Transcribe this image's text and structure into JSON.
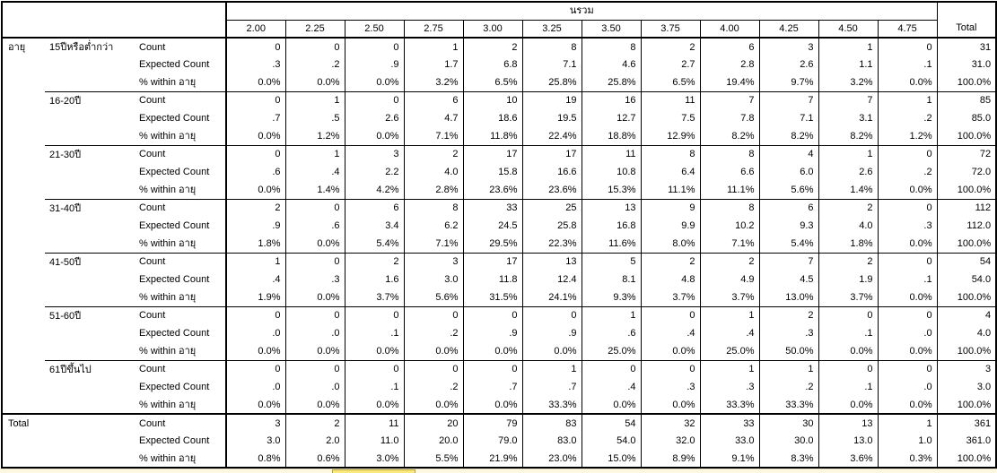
{
  "table": {
    "col_group_label": "นรวม",
    "columns": [
      "2.00",
      "2.25",
      "2.50",
      "2.75",
      "3.00",
      "3.25",
      "3.50",
      "3.75",
      "4.00",
      "4.25",
      "4.50",
      "4.75"
    ],
    "total_label": "Total",
    "sections": [
      {
        "dim_label": "อายุ",
        "groups": [
          {
            "label": "15ปีหรือต่ำกว่า",
            "stats": [
              {
                "label": "Count",
                "values": [
                  "0",
                  "0",
                  "0",
                  "1",
                  "2",
                  "8",
                  "8",
                  "2",
                  "6",
                  "3",
                  "1",
                  "0",
                  "31"
                ]
              },
              {
                "label": "Expected Count",
                "values": [
                  ".3",
                  ".2",
                  ".9",
                  "1.7",
                  "6.8",
                  "7.1",
                  "4.6",
                  "2.7",
                  "2.8",
                  "2.6",
                  "1.1",
                  ".1",
                  "31.0"
                ]
              },
              {
                "label": "% within อายุ",
                "values": [
                  "0.0%",
                  "0.0%",
                  "0.0%",
                  "3.2%",
                  "6.5%",
                  "25.8%",
                  "25.8%",
                  "6.5%",
                  "19.4%",
                  "9.7%",
                  "3.2%",
                  "0.0%",
                  "100.0%"
                ]
              }
            ]
          },
          {
            "label": "16-20ปี",
            "stats": [
              {
                "label": "Count",
                "values": [
                  "0",
                  "1",
                  "0",
                  "6",
                  "10",
                  "19",
                  "16",
                  "11",
                  "7",
                  "7",
                  "7",
                  "1",
                  "85"
                ]
              },
              {
                "label": "Expected Count",
                "values": [
                  ".7",
                  ".5",
                  "2.6",
                  "4.7",
                  "18.6",
                  "19.5",
                  "12.7",
                  "7.5",
                  "7.8",
                  "7.1",
                  "3.1",
                  ".2",
                  "85.0"
                ]
              },
              {
                "label": "% within อายุ",
                "values": [
                  "0.0%",
                  "1.2%",
                  "0.0%",
                  "7.1%",
                  "11.8%",
                  "22.4%",
                  "18.8%",
                  "12.9%",
                  "8.2%",
                  "8.2%",
                  "8.2%",
                  "1.2%",
                  "100.0%"
                ]
              }
            ]
          },
          {
            "label": "21-30ปี",
            "stats": [
              {
                "label": "Count",
                "values": [
                  "0",
                  "1",
                  "3",
                  "2",
                  "17",
                  "17",
                  "11",
                  "8",
                  "8",
                  "4",
                  "1",
                  "0",
                  "72"
                ]
              },
              {
                "label": "Expected Count",
                "values": [
                  ".6",
                  ".4",
                  "2.2",
                  "4.0",
                  "15.8",
                  "16.6",
                  "10.8",
                  "6.4",
                  "6.6",
                  "6.0",
                  "2.6",
                  ".2",
                  "72.0"
                ]
              },
              {
                "label": "% within อายุ",
                "values": [
                  "0.0%",
                  "1.4%",
                  "4.2%",
                  "2.8%",
                  "23.6%",
                  "23.6%",
                  "15.3%",
                  "11.1%",
                  "11.1%",
                  "5.6%",
                  "1.4%",
                  "0.0%",
                  "100.0%"
                ]
              }
            ]
          },
          {
            "label": "31-40ปี",
            "stats": [
              {
                "label": "Count",
                "values": [
                  "2",
                  "0",
                  "6",
                  "8",
                  "33",
                  "25",
                  "13",
                  "9",
                  "8",
                  "6",
                  "2",
                  "0",
                  "112"
                ]
              },
              {
                "label": "Expected Count",
                "values": [
                  ".9",
                  ".6",
                  "3.4",
                  "6.2",
                  "24.5",
                  "25.8",
                  "16.8",
                  "9.9",
                  "10.2",
                  "9.3",
                  "4.0",
                  ".3",
                  "112.0"
                ]
              },
              {
                "label": "% within อายุ",
                "values": [
                  "1.8%",
                  "0.0%",
                  "5.4%",
                  "7.1%",
                  "29.5%",
                  "22.3%",
                  "11.6%",
                  "8.0%",
                  "7.1%",
                  "5.4%",
                  "1.8%",
                  "0.0%",
                  "100.0%"
                ]
              }
            ]
          },
          {
            "label": "41-50ปี",
            "stats": [
              {
                "label": "Count",
                "values": [
                  "1",
                  "0",
                  "2",
                  "3",
                  "17",
                  "13",
                  "5",
                  "2",
                  "2",
                  "7",
                  "2",
                  "0",
                  "54"
                ]
              },
              {
                "label": "Expected Count",
                "values": [
                  ".4",
                  ".3",
                  "1.6",
                  "3.0",
                  "11.8",
                  "12.4",
                  "8.1",
                  "4.8",
                  "4.9",
                  "4.5",
                  "1.9",
                  ".1",
                  "54.0"
                ]
              },
              {
                "label": "% within อายุ",
                "values": [
                  "1.9%",
                  "0.0%",
                  "3.7%",
                  "5.6%",
                  "31.5%",
                  "24.1%",
                  "9.3%",
                  "3.7%",
                  "3.7%",
                  "13.0%",
                  "3.7%",
                  "0.0%",
                  "100.0%"
                ]
              }
            ]
          },
          {
            "label": "51-60ปี",
            "stats": [
              {
                "label": "Count",
                "values": [
                  "0",
                  "0",
                  "0",
                  "0",
                  "0",
                  "0",
                  "1",
                  "0",
                  "1",
                  "2",
                  "0",
                  "0",
                  "4"
                ]
              },
              {
                "label": "Expected Count",
                "values": [
                  ".0",
                  ".0",
                  ".1",
                  ".2",
                  ".9",
                  ".9",
                  ".6",
                  ".4",
                  ".4",
                  ".3",
                  ".1",
                  ".0",
                  "4.0"
                ]
              },
              {
                "label": "% within อายุ",
                "values": [
                  "0.0%",
                  "0.0%",
                  "0.0%",
                  "0.0%",
                  "0.0%",
                  "0.0%",
                  "25.0%",
                  "0.0%",
                  "25.0%",
                  "50.0%",
                  "0.0%",
                  "0.0%",
                  "100.0%"
                ]
              }
            ]
          },
          {
            "label": "61ปีขึ้นไป",
            "stats": [
              {
                "label": "Count",
                "values": [
                  "0",
                  "0",
                  "0",
                  "0",
                  "0",
                  "1",
                  "0",
                  "0",
                  "1",
                  "1",
                  "0",
                  "0",
                  "3"
                ]
              },
              {
                "label": "Expected Count",
                "values": [
                  ".0",
                  ".0",
                  ".1",
                  ".2",
                  ".7",
                  ".7",
                  ".4",
                  ".3",
                  ".3",
                  ".2",
                  ".1",
                  ".0",
                  "3.0"
                ]
              },
              {
                "label": "% within อายุ",
                "values": [
                  "0.0%",
                  "0.0%",
                  "0.0%",
                  "0.0%",
                  "0.0%",
                  "33.3%",
                  "0.0%",
                  "0.0%",
                  "33.3%",
                  "33.3%",
                  "0.0%",
                  "0.0%",
                  "100.0%"
                ]
              }
            ]
          }
        ]
      },
      {
        "dim_label": "Total",
        "groups": [
          {
            "label": "",
            "stats": [
              {
                "label": "Count",
                "values": [
                  "3",
                  "2",
                  "11",
                  "20",
                  "79",
                  "83",
                  "54",
                  "32",
                  "33",
                  "30",
                  "13",
                  "1",
                  "361"
                ]
              },
              {
                "label": "Expected Count",
                "values": [
                  "3.0",
                  "2.0",
                  "11.0",
                  "20.0",
                  "79.0",
                  "83.0",
                  "54.0",
                  "32.0",
                  "33.0",
                  "30.0",
                  "13.0",
                  "1.0",
                  "361.0"
                ]
              },
              {
                "label": "% within อายุ",
                "values": [
                  "0.8%",
                  "0.6%",
                  "3.0%",
                  "5.5%",
                  "21.9%",
                  "23.0%",
                  "15.0%",
                  "8.9%",
                  "9.1%",
                  "8.3%",
                  "3.6%",
                  "0.3%",
                  "100.0%"
                ]
              }
            ]
          }
        ]
      }
    ]
  },
  "colors": {
    "table_border": "#000000",
    "highlight_fill": "#FBE97E",
    "highlight_border": "#B5A23C",
    "strip_background": "#FCF8E1"
  }
}
